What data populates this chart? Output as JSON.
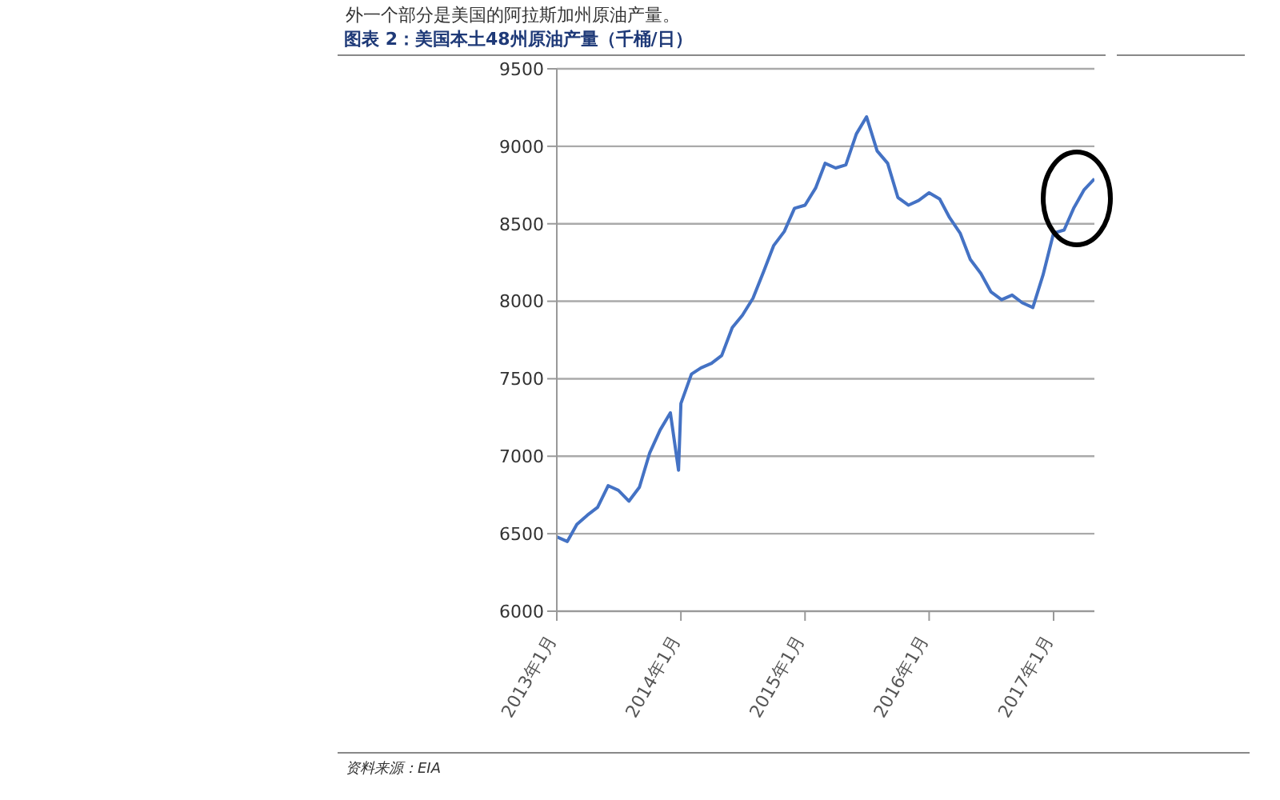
{
  "chart_data": {
    "type": "line",
    "title": "图表 2：美国本土48州原油产量（千桶/日）",
    "annotations": [
      "外一个部分是美国的阿拉斯加州原油产量。",
      "资料来源：EIA"
    ],
    "x": [
      "2013-01",
      "2013-02",
      "2013-03",
      "2013-04",
      "2013-05",
      "2013-06",
      "2013-07",
      "2013-08",
      "2013-09",
      "2013-10",
      "2013-11",
      "2013-12",
      "2013-12-25",
      "2014-01",
      "2014-02",
      "2014-03",
      "2014-04",
      "2014-05",
      "2014-06",
      "2014-07",
      "2014-08",
      "2014-09",
      "2014-10",
      "2014-11",
      "2014-12",
      "2015-01",
      "2015-02",
      "2015-03",
      "2015-04",
      "2015-05",
      "2015-06",
      "2015-07",
      "2015-08",
      "2015-09",
      "2015-10",
      "2015-11",
      "2015-12",
      "2016-01",
      "2016-02",
      "2016-03",
      "2016-04",
      "2016-05",
      "2016-06",
      "2016-07",
      "2016-08",
      "2016-09",
      "2016-10",
      "2016-11",
      "2016-12",
      "2017-01",
      "2017-02",
      "2017-03",
      "2017-04",
      "2017-05"
    ],
    "series": [
      {
        "color": "#4472c4",
        "values": [
          6480,
          6450,
          6560,
          6620,
          6670,
          6810,
          6780,
          6710,
          6800,
          7020,
          7170,
          7280,
          6910,
          7340,
          7530,
          7570,
          7600,
          7650,
          7830,
          7910,
          8020,
          8190,
          8360,
          8450,
          8600,
          8620,
          8730,
          8890,
          8860,
          8880,
          9080,
          9190,
          8970,
          8890,
          8670,
          8620,
          8650,
          8700,
          8660,
          8540,
          8440,
          8270,
          8180,
          8060,
          8010,
          8040,
          7990,
          7960,
          8170,
          8440,
          8460,
          8600,
          8720,
          8790
        ]
      }
    ],
    "xlim": [
      "2013-01",
      "2017-05"
    ],
    "xticks": [
      {
        "value": "2013-01",
        "label": "2013年1月"
      },
      {
        "value": "2014-01",
        "label": "2014年1月"
      },
      {
        "value": "2015-01",
        "label": "2015年1月"
      },
      {
        "value": "2016-01",
        "label": "2016年1月"
      },
      {
        "value": "2017-01",
        "label": "2017年1月"
      }
    ],
    "ylim": [
      6000,
      9500
    ],
    "yticks": [
      6000,
      6500,
      7000,
      7500,
      8000,
      8500,
      9000,
      9500
    ],
    "grid": "y",
    "marker": "none",
    "line_style": "solid"
  }
}
